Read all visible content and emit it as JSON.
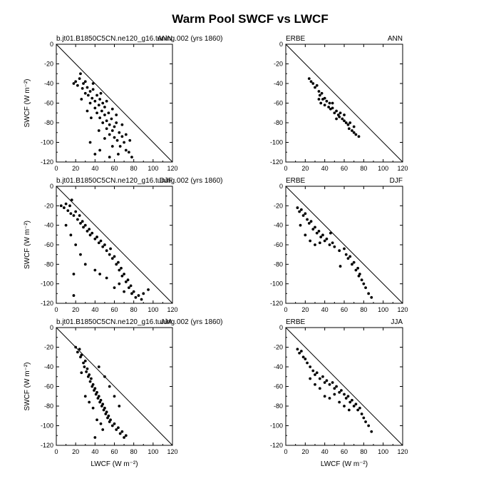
{
  "figure_title": "Warm Pool SWCF vs LWCF",
  "chart_data": [
    {
      "type": "scatter",
      "panel": "model-ann",
      "left_label": "b.jt01.B1850C5CN.ne120_g16.tuning.002 (yrs 1860)",
      "right_label": "ANN",
      "xlabel": "",
      "ylabel": "SWCF (W m⁻²)",
      "xlim": [
        0,
        120
      ],
      "ylim": [
        -120,
        0
      ],
      "x_ticks": [
        "0",
        "20",
        "40",
        "60",
        "80",
        "100",
        "120"
      ],
      "y_ticks": [
        "0",
        "-20",
        "-40",
        "-60",
        "-80",
        "-100",
        "-120"
      ],
      "reference_line": "x + y = 0",
      "points": [
        [
          20,
          -38
        ],
        [
          22,
          -42
        ],
        [
          24,
          -35
        ],
        [
          25,
          -30
        ],
        [
          27,
          -45
        ],
        [
          28,
          -40
        ],
        [
          30,
          -50
        ],
        [
          30,
          -38
        ],
        [
          32,
          -44
        ],
        [
          33,
          -52
        ],
        [
          35,
          -48
        ],
        [
          35,
          -60
        ],
        [
          37,
          -55
        ],
        [
          38,
          -46
        ],
        [
          40,
          -58
        ],
        [
          40,
          -65
        ],
        [
          42,
          -52
        ],
        [
          42,
          -70
        ],
        [
          44,
          -62
        ],
        [
          45,
          -56
        ],
        [
          45,
          -75
        ],
        [
          47,
          -68
        ],
        [
          48,
          -60
        ],
        [
          48,
          -80
        ],
        [
          50,
          -72
        ],
        [
          50,
          -64
        ],
        [
          52,
          -78
        ],
        [
          52,
          -86
        ],
        [
          54,
          -70
        ],
        [
          55,
          -82
        ],
        [
          55,
          -92
        ],
        [
          57,
          -76
        ],
        [
          58,
          -88
        ],
        [
          60,
          -84
        ],
        [
          60,
          -95
        ],
        [
          62,
          -80
        ],
        [
          63,
          -98
        ],
        [
          65,
          -90
        ],
        [
          66,
          -104
        ],
        [
          68,
          -94
        ],
        [
          70,
          -100
        ],
        [
          72,
          -108
        ],
        [
          75,
          -110
        ],
        [
          78,
          -115
        ],
        [
          35,
          -100
        ],
        [
          40,
          -112
        ],
        [
          45,
          -108
        ],
        [
          55,
          -115
        ],
        [
          18,
          -40
        ],
        [
          26,
          -56
        ],
        [
          32,
          -68
        ],
        [
          36,
          -75
        ],
        [
          44,
          -88
        ],
        [
          50,
          -96
        ],
        [
          58,
          -104
        ],
        [
          64,
          -112
        ],
        [
          38,
          -40
        ],
        [
          46,
          -50
        ],
        [
          52,
          -58
        ],
        [
          58,
          -66
        ],
        [
          62,
          -72
        ],
        [
          68,
          -82
        ],
        [
          72,
          -92
        ],
        [
          76,
          -98
        ]
      ]
    },
    {
      "type": "scatter",
      "panel": "obs-ann",
      "left_label": "ERBE",
      "right_label": "ANN",
      "xlabel": "",
      "ylabel": "",
      "xlim": [
        0,
        120
      ],
      "ylim": [
        -120,
        0
      ],
      "x_ticks": [
        "0",
        "20",
        "40",
        "60",
        "80",
        "100",
        "120"
      ],
      "y_ticks": [
        "0",
        "-20",
        "-40",
        "-60",
        "-80",
        "-100",
        "-120"
      ],
      "reference_line": "x + y = 0",
      "points": [
        [
          24,
          -35
        ],
        [
          26,
          -38
        ],
        [
          28,
          -40
        ],
        [
          30,
          -44
        ],
        [
          32,
          -42
        ],
        [
          34,
          -48
        ],
        [
          35,
          -52
        ],
        [
          37,
          -50
        ],
        [
          38,
          -56
        ],
        [
          40,
          -55
        ],
        [
          40,
          -62
        ],
        [
          42,
          -58
        ],
        [
          44,
          -64
        ],
        [
          45,
          -60
        ],
        [
          46,
          -66
        ],
        [
          48,
          -65
        ],
        [
          50,
          -70
        ],
        [
          52,
          -68
        ],
        [
          54,
          -72
        ],
        [
          55,
          -74
        ],
        [
          56,
          -70
        ],
        [
          58,
          -76
        ],
        [
          60,
          -78
        ],
        [
          62,
          -80
        ],
        [
          64,
          -82
        ],
        [
          65,
          -86
        ],
        [
          66,
          -80
        ],
        [
          68,
          -88
        ],
        [
          70,
          -90
        ],
        [
          72,
          -92
        ],
        [
          75,
          -94
        ],
        [
          34,
          -56
        ],
        [
          36,
          -60
        ],
        [
          48,
          -60
        ],
        [
          52,
          -76
        ],
        [
          60,
          -72
        ],
        [
          70,
          -84
        ]
      ]
    },
    {
      "type": "scatter",
      "panel": "model-djf",
      "left_label": "b.jt01.B1850C5CN.ne120_g16.tuning.002 (yrs 1860)",
      "right_label": "DJF",
      "xlabel": "",
      "ylabel": "SWCF (W m⁻²)",
      "xlim": [
        0,
        120
      ],
      "ylim": [
        -120,
        0
      ],
      "x_ticks": [
        "0",
        "20",
        "40",
        "60",
        "80",
        "100",
        "120"
      ],
      "y_ticks": [
        "0",
        "-20",
        "-40",
        "-60",
        "-80",
        "-100",
        "-120"
      ],
      "reference_line": "x + y = 0",
      "points": [
        [
          5,
          -20
        ],
        [
          8,
          -22
        ],
        [
          10,
          -18
        ],
        [
          12,
          -25
        ],
        [
          14,
          -20
        ],
        [
          15,
          -28
        ],
        [
          16,
          -14
        ],
        [
          18,
          -30
        ],
        [
          20,
          -26
        ],
        [
          22,
          -34
        ],
        [
          24,
          -30
        ],
        [
          25,
          -38
        ],
        [
          27,
          -36
        ],
        [
          28,
          -42
        ],
        [
          30,
          -40
        ],
        [
          32,
          -46
        ],
        [
          34,
          -44
        ],
        [
          35,
          -50
        ],
        [
          37,
          -48
        ],
        [
          40,
          -54
        ],
        [
          42,
          -52
        ],
        [
          44,
          -58
        ],
        [
          46,
          -56
        ],
        [
          48,
          -62
        ],
        [
          50,
          -60
        ],
        [
          52,
          -66
        ],
        [
          55,
          -70
        ],
        [
          56,
          -64
        ],
        [
          58,
          -74
        ],
        [
          60,
          -72
        ],
        [
          62,
          -80
        ],
        [
          64,
          -78
        ],
        [
          65,
          -86
        ],
        [
          67,
          -84
        ],
        [
          68,
          -92
        ],
        [
          70,
          -90
        ],
        [
          72,
          -98
        ],
        [
          74,
          -96
        ],
        [
          75,
          -104
        ],
        [
          77,
          -102
        ],
        [
          78,
          -110
        ],
        [
          80,
          -108
        ],
        [
          82,
          -114
        ],
        [
          85,
          -112
        ],
        [
          88,
          -116
        ],
        [
          90,
          -110
        ],
        [
          95,
          -106
        ],
        [
          10,
          -40
        ],
        [
          15,
          -50
        ],
        [
          20,
          -60
        ],
        [
          25,
          -70
        ],
        [
          18,
          -90
        ],
        [
          30,
          -80
        ],
        [
          40,
          -86
        ],
        [
          45,
          -90
        ],
        [
          52,
          -94
        ],
        [
          60,
          -104
        ],
        [
          18,
          -112
        ],
        [
          65,
          -100
        ],
        [
          70,
          -108
        ]
      ]
    },
    {
      "type": "scatter",
      "panel": "obs-djf",
      "left_label": "ERBE",
      "right_label": "DJF",
      "xlabel": "",
      "ylabel": "",
      "xlim": [
        0,
        120
      ],
      "ylim": [
        -120,
        0
      ],
      "x_ticks": [
        "0",
        "20",
        "40",
        "60",
        "80",
        "100",
        "120"
      ],
      "y_ticks": [
        "0",
        "-20",
        "-40",
        "-60",
        "-80",
        "-100",
        "-120"
      ],
      "reference_line": "x + y = 0",
      "points": [
        [
          12,
          -22
        ],
        [
          14,
          -26
        ],
        [
          16,
          -24
        ],
        [
          18,
          -30
        ],
        [
          20,
          -28
        ],
        [
          22,
          -34
        ],
        [
          24,
          -38
        ],
        [
          26,
          -36
        ],
        [
          28,
          -44
        ],
        [
          30,
          -42
        ],
        [
          32,
          -48
        ],
        [
          34,
          -46
        ],
        [
          36,
          -52
        ],
        [
          38,
          -50
        ],
        [
          40,
          -56
        ],
        [
          42,
          -54
        ],
        [
          45,
          -60
        ],
        [
          48,
          -58
        ],
        [
          50,
          -62
        ],
        [
          55,
          -66
        ],
        [
          60,
          -64
        ],
        [
          62,
          -70
        ],
        [
          64,
          -74
        ],
        [
          66,
          -72
        ],
        [
          68,
          -80
        ],
        [
          70,
          -78
        ],
        [
          72,
          -86
        ],
        [
          74,
          -84
        ],
        [
          75,
          -92
        ],
        [
          76,
          -90
        ],
        [
          78,
          -96
        ],
        [
          80,
          -100
        ],
        [
          82,
          -104
        ],
        [
          85,
          -110
        ],
        [
          88,
          -114
        ],
        [
          15,
          -40
        ],
        [
          20,
          -50
        ],
        [
          25,
          -56
        ],
        [
          30,
          -60
        ],
        [
          35,
          -58
        ],
        [
          46,
          -48
        ],
        [
          56,
          -82
        ]
      ]
    },
    {
      "type": "scatter",
      "panel": "model-jja",
      "left_label": "b.jt01.B1850C5CN.ne120_g16.tuning.002 (yrs 1860)",
      "right_label": "JJA",
      "xlabel": "LWCF (W m⁻²)",
      "ylabel": "SWCF (W m⁻²)",
      "xlim": [
        0,
        120
      ],
      "ylim": [
        -120,
        0
      ],
      "x_ticks": [
        "0",
        "20",
        "40",
        "60",
        "80",
        "100",
        "120"
      ],
      "y_ticks": [
        "0",
        "-20",
        "-40",
        "-60",
        "-80",
        "-100",
        "-120"
      ],
      "reference_line": "x + y = 0",
      "points": [
        [
          20,
          -20
        ],
        [
          22,
          -25
        ],
        [
          24,
          -22
        ],
        [
          25,
          -30
        ],
        [
          26,
          -28
        ],
        [
          28,
          -36
        ],
        [
          29,
          -40
        ],
        [
          30,
          -34
        ],
        [
          31,
          -45
        ],
        [
          32,
          -42
        ],
        [
          33,
          -50
        ],
        [
          34,
          -48
        ],
        [
          35,
          -55
        ],
        [
          36,
          -52
        ],
        [
          37,
          -60
        ],
        [
          38,
          -58
        ],
        [
          39,
          -64
        ],
        [
          40,
          -62
        ],
        [
          41,
          -68
        ],
        [
          42,
          -66
        ],
        [
          43,
          -72
        ],
        [
          44,
          -70
        ],
        [
          45,
          -76
        ],
        [
          46,
          -74
        ],
        [
          47,
          -80
        ],
        [
          48,
          -78
        ],
        [
          49,
          -84
        ],
        [
          50,
          -82
        ],
        [
          51,
          -88
        ],
        [
          52,
          -86
        ],
        [
          53,
          -92
        ],
        [
          54,
          -90
        ],
        [
          55,
          -96
        ],
        [
          56,
          -94
        ],
        [
          58,
          -100
        ],
        [
          60,
          -98
        ],
        [
          62,
          -104
        ],
        [
          64,
          -102
        ],
        [
          66,
          -108
        ],
        [
          68,
          -106
        ],
        [
          70,
          -112
        ],
        [
          72,
          -110
        ],
        [
          40,
          -112
        ],
        [
          48,
          -104
        ],
        [
          30,
          -70
        ],
        [
          34,
          -76
        ],
        [
          38,
          -82
        ],
        [
          26,
          -46
        ],
        [
          44,
          -40
        ],
        [
          50,
          -50
        ],
        [
          55,
          -60
        ],
        [
          60,
          -70
        ],
        [
          65,
          -80
        ],
        [
          42,
          -94
        ],
        [
          46,
          -98
        ]
      ]
    },
    {
      "type": "scatter",
      "panel": "obs-jja",
      "left_label": "ERBE",
      "right_label": "JJA",
      "xlabel": "LWCF (W m⁻²)",
      "ylabel": "",
      "xlim": [
        0,
        120
      ],
      "ylim": [
        -120,
        0
      ],
      "x_ticks": [
        "0",
        "20",
        "40",
        "60",
        "80",
        "100",
        "120"
      ],
      "y_ticks": [
        "0",
        "-20",
        "-40",
        "-60",
        "-80",
        "-100",
        "-120"
      ],
      "reference_line": "x + y = 0",
      "points": [
        [
          12,
          -22
        ],
        [
          14,
          -26
        ],
        [
          16,
          -24
        ],
        [
          18,
          -30
        ],
        [
          20,
          -32
        ],
        [
          22,
          -36
        ],
        [
          25,
          -40
        ],
        [
          28,
          -44
        ],
        [
          30,
          -48
        ],
        [
          32,
          -46
        ],
        [
          35,
          -52
        ],
        [
          38,
          -50
        ],
        [
          40,
          -56
        ],
        [
          42,
          -54
        ],
        [
          45,
          -58
        ],
        [
          48,
          -56
        ],
        [
          50,
          -62
        ],
        [
          52,
          -60
        ],
        [
          55,
          -66
        ],
        [
          57,
          -64
        ],
        [
          60,
          -68
        ],
        [
          62,
          -72
        ],
        [
          64,
          -70
        ],
        [
          66,
          -76
        ],
        [
          68,
          -74
        ],
        [
          70,
          -80
        ],
        [
          72,
          -78
        ],
        [
          74,
          -84
        ],
        [
          76,
          -82
        ],
        [
          78,
          -88
        ],
        [
          80,
          -92
        ],
        [
          82,
          -96
        ],
        [
          85,
          -100
        ],
        [
          88,
          -106
        ],
        [
          40,
          -70
        ],
        [
          45,
          -72
        ],
        [
          50,
          -68
        ],
        [
          55,
          -76
        ],
        [
          60,
          -80
        ],
        [
          65,
          -84
        ],
        [
          25,
          -52
        ],
        [
          30,
          -58
        ],
        [
          35,
          -62
        ]
      ]
    }
  ]
}
